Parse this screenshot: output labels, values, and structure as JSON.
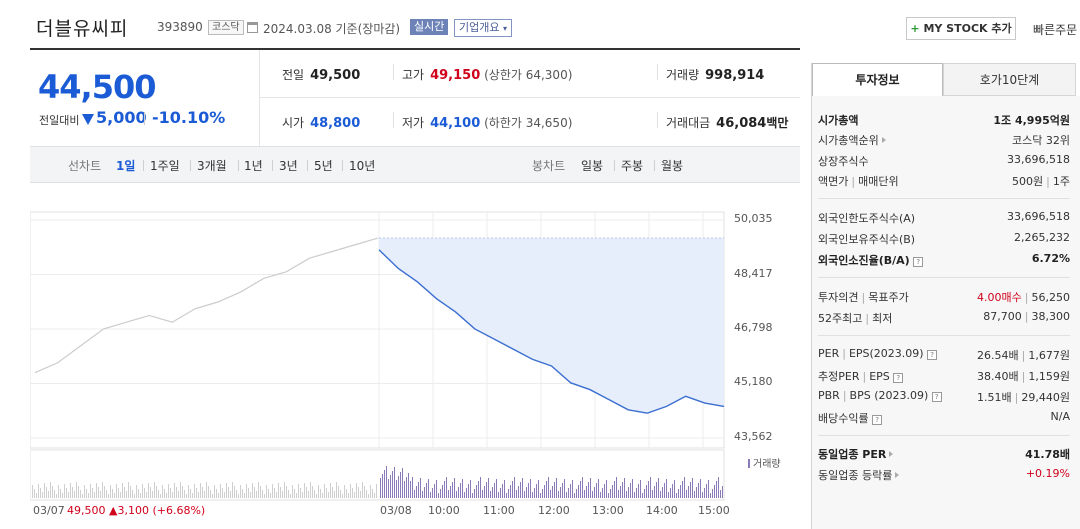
{
  "header": {
    "stock_name": "더블유씨피",
    "stock_code": "393890",
    "market": "코스닥",
    "date_text": "2024.03.08 기준(장마감)",
    "realtime_label": "실시간",
    "company_label": "기업개요",
    "mystock_label": "MY STOCK 추가",
    "quick_order_label": "빠른주문"
  },
  "price": {
    "current": "44,500",
    "diff_label": "전일대비",
    "diff_value": "5,000",
    "diff_pct": "-10.10%",
    "direction": "down"
  },
  "stats": {
    "prev_close_label": "전일",
    "prev_close": "49,500",
    "high_label": "고가",
    "high": "49,150",
    "upper_limit_label": "(상한가 64,300)",
    "volume_label": "거래량",
    "volume": "998,914",
    "open_label": "시가",
    "open": "48,800",
    "low_label": "저가",
    "low": "44,100",
    "lower_limit_label": "(하한가 34,650)",
    "amount_label": "거래대금",
    "amount": "46,084",
    "amount_unit": "백만"
  },
  "periods": {
    "line_label": "선차트",
    "line_items": [
      "1일",
      "1주일",
      "3개월",
      "1년",
      "3년",
      "5년",
      "10년"
    ],
    "active": "1일",
    "candle_label": "봉차트",
    "candle_items": [
      "일봉",
      "주봉",
      "월봉"
    ]
  },
  "chart_data": {
    "type": "line",
    "y_ticks": [
      "50,035",
      "48,417",
      "46,798",
      "45,180",
      "43,562"
    ],
    "ylim": [
      43562,
      50035
    ],
    "x_ticks": [
      "03/07",
      "03/08",
      "10:00",
      "11:00",
      "12:00",
      "13:00",
      "14:00",
      "15:00"
    ],
    "prev_day": {
      "date": "03/07",
      "close": "49,500",
      "change": "▲3,100",
      "change_pct": "(+6.68%)",
      "values": [
        45500,
        45800,
        46300,
        46800,
        47000,
        47200,
        47000,
        47400,
        47600,
        47900,
        48300,
        48500,
        48900,
        49100,
        49300,
        49500
      ]
    },
    "today": {
      "date": "03/08",
      "close": "44,500",
      "values": [
        49150,
        48600,
        48200,
        47700,
        47300,
        46800,
        46500,
        46200,
        45900,
        45700,
        45200,
        45000,
        44700,
        44400,
        44300,
        44500,
        44800,
        44600,
        44500
      ]
    },
    "volume_label": "거래량",
    "colors": {
      "prev_line": "#cccccc",
      "today_line": "#3c6fd0",
      "fill": "#e6eefb",
      "volume": "#8a7ab8"
    }
  },
  "right_panel": {
    "tabs": [
      "투자정보",
      "호가10단계"
    ],
    "market_cap_label": "시가총액",
    "market_cap": "1조 4,995억원",
    "market_cap_rank_label": "시가총액순위",
    "market_cap_rank": "코스닥 32위",
    "shares_label": "상장주식수",
    "shares": "33,696,518",
    "par_label": "액면가",
    "trade_unit_label": "매매단위",
    "par_value": "500원",
    "trade_unit": "1주",
    "foreign_limit_label": "외국인한도주식수(A)",
    "foreign_limit": "33,696,518",
    "foreign_hold_label": "외국인보유주식수(B)",
    "foreign_hold": "2,265,232",
    "foreign_ratio_label": "외국인소진율(B/A)",
    "foreign_ratio": "6.72%",
    "opinion_label": "투자의견",
    "target_label": "목표주가",
    "opinion": "4.00매수",
    "target": "56,250",
    "high52_label": "52주최고",
    "low52_label": "최저",
    "high52": "87,700",
    "low52": "38,300",
    "per_label": "PER",
    "eps_label": "EPS(2023.09)",
    "per": "26.54배",
    "eps": "1,677원",
    "est_per_label": "추정PER",
    "est_eps_label": "EPS",
    "est_per": "38.40배",
    "est_eps": "1,159원",
    "pbr_label": "PBR",
    "bps_label": "BPS (2023.09)",
    "pbr": "1.51배",
    "bps": "29,440원",
    "dividend_label": "배당수익률",
    "dividend": "N/A",
    "sector_per_label": "동일업종 PER",
    "sector_per": "41.78배",
    "sector_change_label": "동일업종 등락률",
    "sector_change": "+0.19%"
  }
}
